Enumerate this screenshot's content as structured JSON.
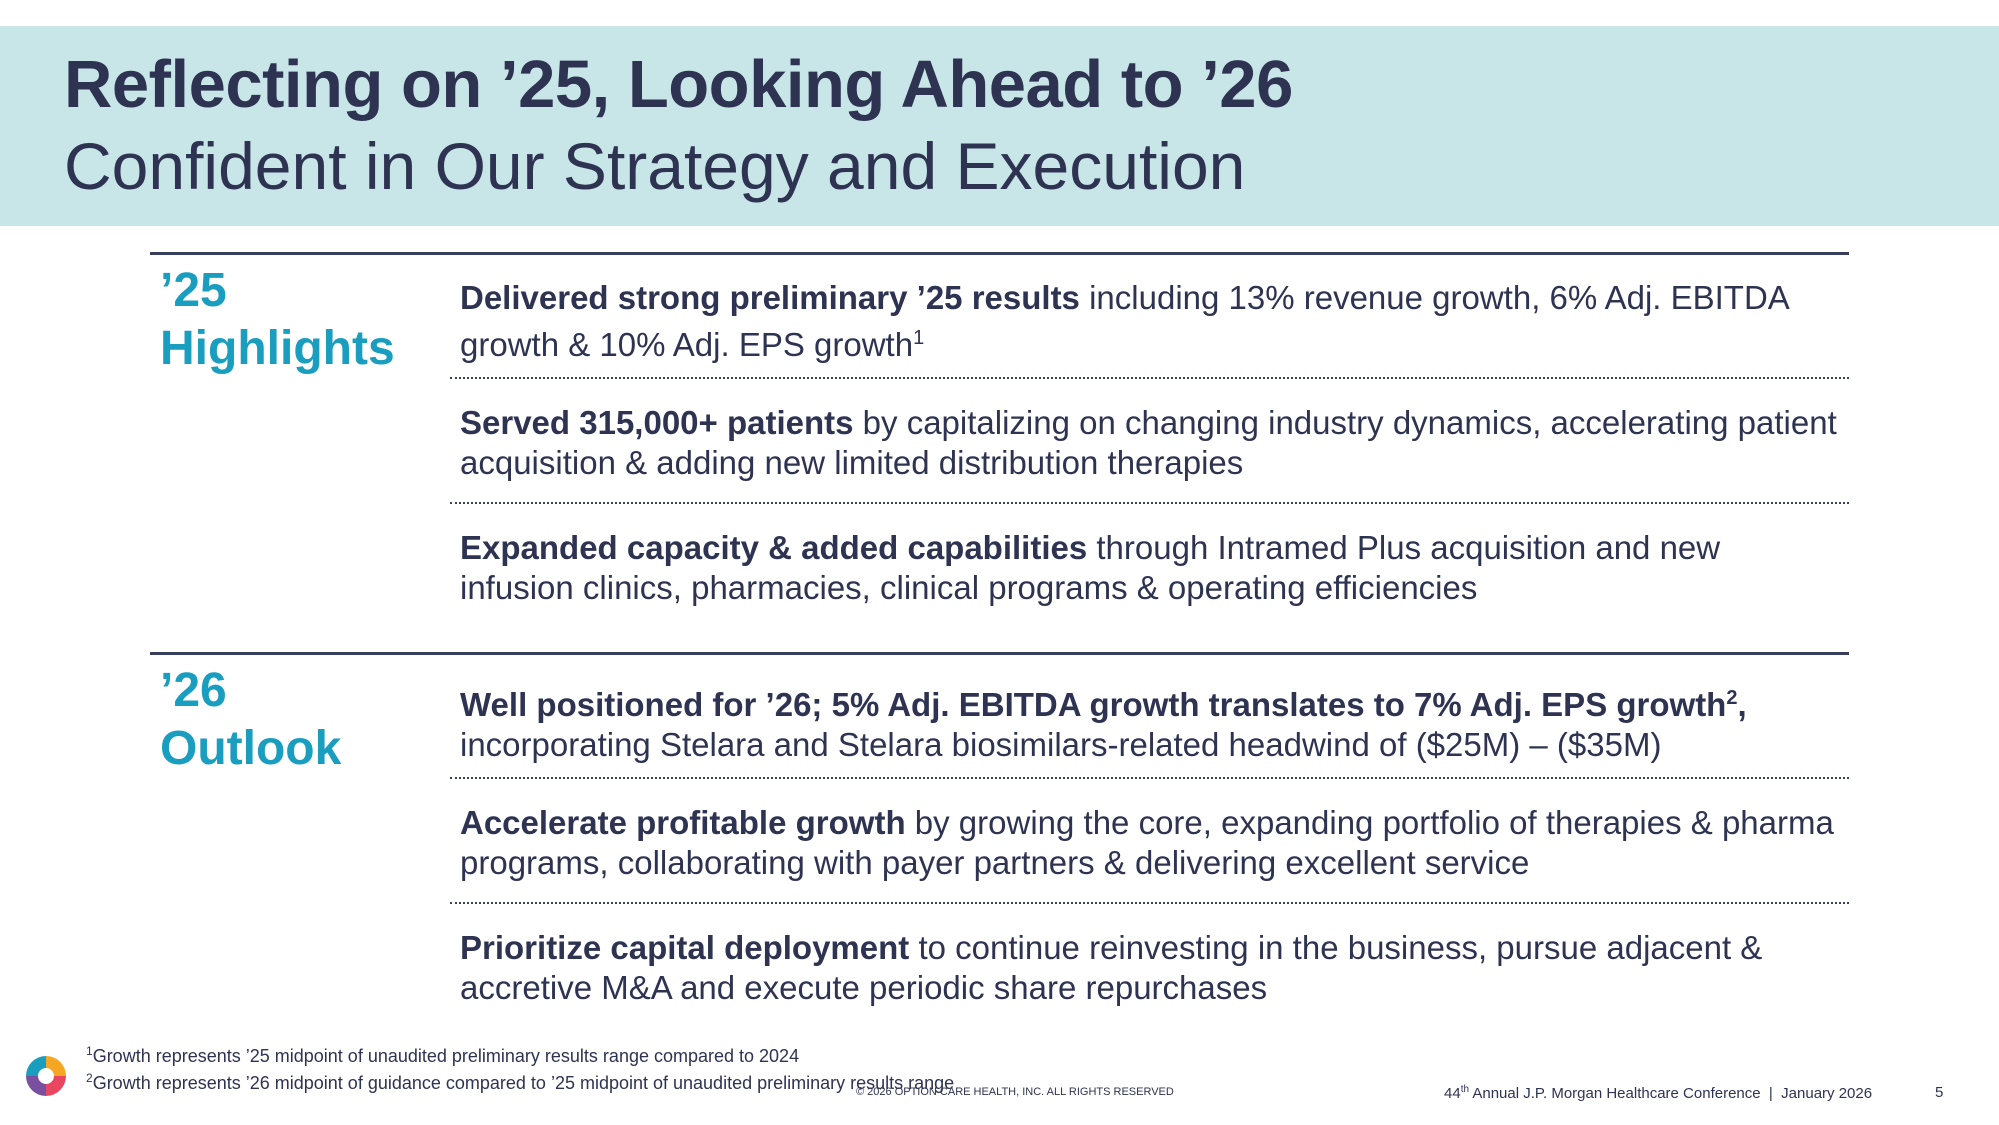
{
  "header": {
    "title": "Reflecting on ’25, Looking Ahead to ’26",
    "subtitle": "Confident in Our Strategy and Execution"
  },
  "sections": [
    {
      "label_line1": "’25",
      "label_line2": "Highlights",
      "items": [
        {
          "bold": "Delivered strong preliminary ’25 results",
          "text": " including 13% revenue growth, 6% Adj. EBITDA growth & 10% Adj. EPS growth",
          "sup": "1"
        },
        {
          "bold": "Served 315,000+ patients",
          "text": " by capitalizing on changing industry dynamics, accelerating patient acquisition & adding new limited distribution therapies"
        },
        {
          "bold": "Expanded capacity & added capabilities",
          "text": " through Intramed Plus acquisition and new infusion clinics, pharmacies, clinical programs & operating efficiencies"
        }
      ]
    },
    {
      "label_line1": "’26",
      "label_line2": "Outlook",
      "items": [
        {
          "bold": "Well positioned for ’26; 5% Adj. EBITDA growth translates to 7% Adj. EPS growth",
          "bold_sup": "2",
          "bold_after": ",",
          "text": " incorporating Stelara and Stelara biosimilars-related headwind of ($25M) – ($35M)"
        },
        {
          "bold": "Accelerate profitable growth",
          "text": " by growing the core, expanding portfolio of therapies & pharma programs, collaborating with payer partners & delivering excellent service"
        },
        {
          "bold": "Prioritize capital deployment",
          "text": " to continue reinvesting in the business, pursue adjacent & accretive M&A and execute periodic share repurchases"
        }
      ]
    }
  ],
  "footnotes": [
    {
      "num": "1",
      "text": "Growth represents ’25 midpoint of unaudited preliminary results range compared to 2024"
    },
    {
      "num": "2",
      "text": "Growth represents ’26 midpoint of guidance compared to ’25 midpoint of unaudited preliminary results range"
    }
  ],
  "footer": {
    "copyright": "© 2026 Option Care Health, Inc. All rights reserved",
    "conference_num": "44",
    "conference_sup": "th",
    "conference_text": " Annual J.P. Morgan Healthcare Conference  |  January 2026",
    "page_number": "5"
  },
  "colors": {
    "header_band": "#c8e5e8",
    "navy": "#2e3352",
    "accent_teal": "#1a9ec0"
  },
  "logo": {
    "icon": "option-care-logo-icon"
  }
}
